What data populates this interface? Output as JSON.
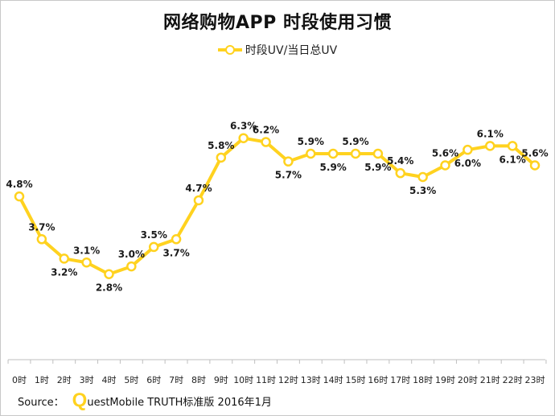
{
  "title": "网络购物APP 时段使用习惯",
  "source": {
    "label": "Source：",
    "logo_letter": "Q",
    "text": "uestMobile TRUTH标准版 2016年1月"
  },
  "colors": {
    "line": "#FFD21F",
    "axis": "#bfbfbf"
  },
  "chart_data": {
    "type": "line",
    "title": "网络购物APP 时段使用习惯",
    "xlabel": "",
    "ylabel": "",
    "categories": [
      "0时",
      "1时",
      "2时",
      "3时",
      "4时",
      "5时",
      "6时",
      "7时",
      "8时",
      "9时",
      "10时",
      "11时",
      "12时",
      "13时",
      "14时",
      "15时",
      "16时",
      "17时",
      "18时",
      "19时",
      "20时",
      "21时",
      "22时",
      "23时"
    ],
    "series": [
      {
        "name": "时段UV/当日总UV",
        "values": [
          4.8,
          3.7,
          3.2,
          3.1,
          2.8,
          3.0,
          3.5,
          3.7,
          4.7,
          5.8,
          6.3,
          6.2,
          5.7,
          5.9,
          5.9,
          5.9,
          5.9,
          5.4,
          5.3,
          5.6,
          6.0,
          6.1,
          6.1,
          5.6
        ],
        "labels": [
          "4.8%",
          "3.7%",
          "3.2%",
          "3.1%",
          "2.8%",
          "3.0%",
          "3.5%",
          "3.7%",
          "4.7%",
          "5.8%",
          "6.3%",
          "6.2%",
          "5.7%",
          "5.9%",
          "5.9%",
          "5.9%",
          "5.9%",
          "5.4%",
          "5.3%",
          "5.6%",
          "6.0%",
          "6.1%",
          "6.1%",
          "5.6%"
        ],
        "label_positions": [
          "above",
          "above",
          "below",
          "above",
          "below",
          "above",
          "above",
          "below",
          "above",
          "above",
          "above",
          "above",
          "below",
          "above",
          "below",
          "above",
          "below",
          "above",
          "below",
          "above",
          "below",
          "above",
          "below",
          "above"
        ]
      }
    ],
    "ylim": [
      0,
      7
    ],
    "grid": false,
    "legend": "top-center"
  }
}
